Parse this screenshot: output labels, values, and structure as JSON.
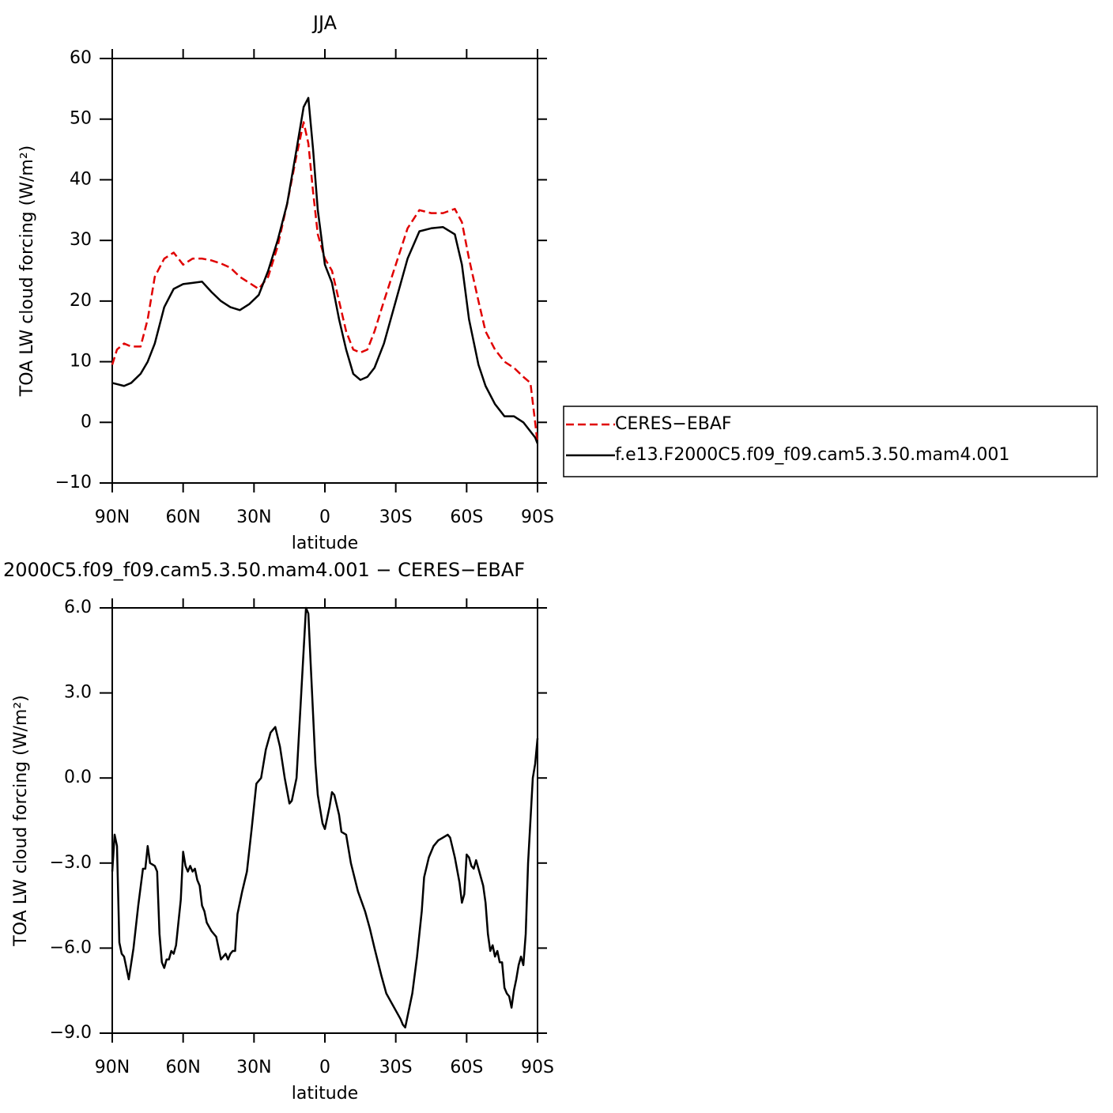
{
  "chart_data": [
    {
      "type": "line",
      "title": "JJA",
      "xlabel": "latitude",
      "ylabel": "TOA LW cloud forcing (W/m²)",
      "x": [
        90,
        88,
        85,
        82,
        78,
        75,
        72,
        68,
        64,
        60,
        56,
        52,
        48,
        44,
        40,
        36,
        32,
        28,
        24,
        20,
        16,
        12,
        9,
        7,
        5,
        3,
        0,
        -3,
        -6,
        -9,
        -12,
        -15,
        -18,
        -21,
        -25,
        -30,
        -35,
        -40,
        -45,
        -50,
        -55,
        -58,
        -61,
        -65,
        -68,
        -72,
        -76,
        -80,
        -84,
        -87,
        -89,
        -90
      ],
      "series": [
        {
          "name": "CERES−EBAF",
          "color": "#e00000",
          "dash": "dashed",
          "values": [
            9.5,
            12,
            13,
            12.5,
            12.5,
            17,
            24,
            27,
            28,
            26,
            27,
            27,
            26.7,
            26.2,
            25.5,
            24,
            23,
            22,
            24,
            29,
            36,
            44,
            49.5,
            46,
            38,
            31,
            27,
            25,
            20,
            15,
            12,
            11.5,
            12,
            15,
            20,
            26,
            32,
            35,
            34.5,
            34.5,
            35.2,
            33,
            27,
            20,
            15,
            12,
            10,
            9,
            7.5,
            6.5,
            0,
            -3.5
          ]
        },
        {
          "name": "f.e13.F2000C5.f09_f09.cam5.3.50.mam4.001",
          "color": "#000000",
          "dash": "solid",
          "values": [
            6.5,
            6.3,
            6,
            6.5,
            8,
            10,
            13,
            19,
            22,
            22.8,
            23,
            23.2,
            21.5,
            20,
            19,
            18.5,
            19.5,
            21,
            25,
            30,
            36,
            45,
            52,
            53.5,
            45,
            35,
            26,
            23,
            17,
            12,
            8,
            7,
            7.5,
            9,
            13,
            20,
            27,
            31.5,
            32,
            32.2,
            31,
            26,
            17,
            9.5,
            6,
            3,
            1,
            1,
            0,
            -1.5,
            -2.5,
            -3.5
          ]
        }
      ],
      "xlim": [
        90,
        -90
      ],
      "xticks": [
        {
          "value": 90,
          "label": "90N"
        },
        {
          "value": 60,
          "label": "60N"
        },
        {
          "value": 30,
          "label": "30N"
        },
        0,
        {
          "value": -30,
          "label": "30S"
        },
        {
          "value": -60,
          "label": "60S"
        },
        {
          "value": -90,
          "label": "90S"
        }
      ],
      "ylim": [
        -10,
        60
      ],
      "yticks": [
        {
          "value": -10,
          "label": "−10"
        },
        0,
        10,
        20,
        30,
        40,
        50,
        60
      ],
      "legend": "right"
    },
    {
      "type": "line",
      "title": "2000C5.f09_f09.cam5.3.50.mam4.001 − CERES−EBAF",
      "xlabel": "latitude",
      "ylabel": "TOA LW cloud forcing (W/m²)",
      "x": [
        90,
        89,
        88,
        87,
        86,
        85,
        83,
        81,
        79,
        77,
        76,
        75,
        74,
        72,
        71,
        70,
        69,
        68,
        67,
        66,
        65,
        64,
        63,
        61,
        60,
        59,
        58,
        57,
        56,
        55,
        54,
        53,
        52,
        51,
        50,
        48,
        46,
        45,
        44,
        42,
        41,
        40,
        39,
        38,
        37,
        35,
        33,
        31,
        29,
        27,
        25,
        23,
        21,
        19,
        17,
        15,
        14,
        12,
        10,
        8,
        7,
        6,
        4,
        3,
        1,
        0,
        -2,
        -3,
        -4,
        -6,
        -7,
        -9,
        -11,
        -14,
        -17,
        -19,
        -21,
        -24,
        -26,
        -28,
        -30,
        -32,
        -33,
        -34,
        -35,
        -37,
        -39,
        -41,
        -42,
        -44,
        -46,
        -48,
        -50,
        -52,
        -53,
        -55,
        -57,
        -58,
        -59,
        -60,
        -61,
        -62,
        -63,
        -64,
        -65,
        -67,
        -68,
        -69,
        -70,
        -71,
        -72,
        -73,
        -74,
        -75,
        -76,
        -77,
        -78,
        -79,
        -80,
        -81,
        -82,
        -83,
        -84,
        -85,
        -86,
        -87,
        -88,
        -89,
        -90
      ],
      "series": [
        {
          "color": "#000000",
          "dash": "solid",
          "values": [
            -3.3,
            -2,
            -2.4,
            -5.8,
            -6.2,
            -6.3,
            -7.1,
            -6,
            -4.5,
            -3.2,
            -3.2,
            -2.4,
            -3,
            -3.1,
            -3.3,
            -5.5,
            -6.5,
            -6.7,
            -6.4,
            -6.4,
            -6.1,
            -6.2,
            -5.9,
            -4.3,
            -2.6,
            -3.1,
            -3.3,
            -3.1,
            -3.3,
            -3.2,
            -3.6,
            -3.8,
            -4.5,
            -4.7,
            -5.1,
            -5.4,
            -5.6,
            -6,
            -6.4,
            -6.2,
            -6.4,
            -6.2,
            -6.1,
            -6.1,
            -4.8,
            -4,
            -3.3,
            -1.8,
            -0.2,
            0,
            1,
            1.6,
            1.8,
            1.1,
            0,
            -0.9,
            -0.8,
            0,
            3,
            6,
            5.8,
            4,
            0.5,
            -0.6,
            -1.6,
            -1.8,
            -1,
            -0.5,
            -0.6,
            -1.3,
            -1.9,
            -2,
            -3,
            -4,
            -4.7,
            -5.3,
            -6,
            -7,
            -7.6,
            -7.9,
            -8.2,
            -8.5,
            -8.7,
            -8.8,
            -8.4,
            -7.6,
            -6.3,
            -4.7,
            -3.5,
            -2.8,
            -2.4,
            -2.2,
            -2.1,
            -2,
            -2.1,
            -2.8,
            -3.7,
            -4.4,
            -4.1,
            -2.7,
            -2.8,
            -3.1,
            -3.2,
            -2.9,
            -3.2,
            -3.8,
            -4.4,
            -5.5,
            -6.1,
            -5.9,
            -6.3,
            -6.1,
            -6.5,
            -6.5,
            -7.4,
            -7.6,
            -7.7,
            -8.1,
            -7.5,
            -7.1,
            -6.6,
            -6.3,
            -6.6,
            -5.5,
            -3,
            -1.5,
            0,
            0.5,
            1.4
          ]
        }
      ],
      "xlim": [
        90,
        -90
      ],
      "xticks": [
        {
          "value": 90,
          "label": "90N"
        },
        {
          "value": 60,
          "label": "60N"
        },
        {
          "value": 30,
          "label": "30N"
        },
        0,
        {
          "value": -30,
          "label": "30S"
        },
        {
          "value": -60,
          "label": "60S"
        },
        {
          "value": -90,
          "label": "90S"
        }
      ],
      "ylim": [
        -9,
        6
      ],
      "yticks": [
        {
          "value": -9,
          "label": "−9.0"
        },
        {
          "value": -6,
          "label": "−6.0"
        },
        {
          "value": -3,
          "label": "−3.0"
        },
        {
          "value": 0,
          "label": "0.0"
        },
        {
          "value": 3,
          "label": "3.0"
        },
        {
          "value": 6,
          "label": "6.0"
        }
      ]
    }
  ]
}
